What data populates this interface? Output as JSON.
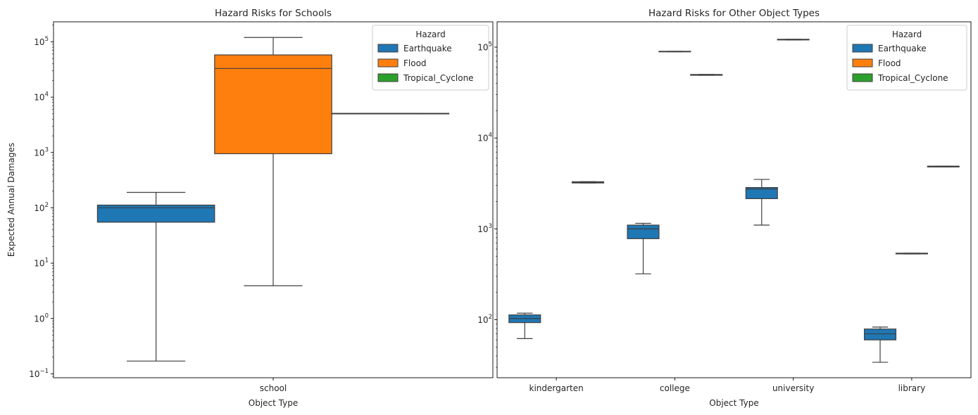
{
  "chart_data": [
    {
      "type": "box",
      "title": "Hazard Risks for Schools",
      "xlabel": "Object Type",
      "ylabel": "Expected Annual Damages",
      "yscale": "log",
      "ylim": [
        0.085,
        230000
      ],
      "yticks": [
        {
          "value": 0.1,
          "base": "10",
          "exp": "−1"
        },
        {
          "value": 1,
          "base": "10",
          "exp": "0"
        },
        {
          "value": 10,
          "base": "10",
          "exp": "1"
        },
        {
          "value": 100,
          "base": "10",
          "exp": "2"
        },
        {
          "value": 1000,
          "base": "10",
          "exp": "3"
        },
        {
          "value": 10000,
          "base": "10",
          "exp": "4"
        },
        {
          "value": 100000,
          "base": "10",
          "exp": "5"
        }
      ],
      "categories": [
        "school"
      ],
      "legend": {
        "title": "Hazard",
        "position": "top-right"
      },
      "series": [
        {
          "name": "Earthquake",
          "color": "#1f77b4",
          "boxes": [
            {
              "min": 0.17,
              "q1": 55,
              "median": 100,
              "q3": 112,
              "max": 190
            }
          ]
        },
        {
          "name": "Flood",
          "color": "#ff7f0e",
          "boxes": [
            {
              "min": 3.9,
              "q1": 950,
              "median": 33000,
              "q3": 58000,
              "max": 120000
            }
          ]
        },
        {
          "name": "Tropical_Cyclone",
          "color": "#2ca02c",
          "boxes": [
            {
              "min": 5000,
              "q1": 5000,
              "median": 5050,
              "q3": 5100,
              "max": 5100
            }
          ]
        }
      ]
    },
    {
      "type": "box",
      "title": "Hazard Risks for Other Object Types",
      "xlabel": "Object Type",
      "ylabel": "",
      "yscale": "log",
      "ylim": [
        23,
        190000
      ],
      "yticks": [
        {
          "value": 100,
          "base": "10",
          "exp": "2"
        },
        {
          "value": 1000,
          "base": "10",
          "exp": "3"
        },
        {
          "value": 10000,
          "base": "10",
          "exp": "4"
        },
        {
          "value": 100000,
          "base": "10",
          "exp": "5"
        }
      ],
      "categories": [
        "kindergarten",
        "college",
        "university",
        "library"
      ],
      "legend": {
        "title": "Hazard",
        "position": "top-right"
      },
      "series": [
        {
          "name": "Earthquake",
          "color": "#1f77b4",
          "boxes": [
            {
              "min": 62,
              "q1": 93,
              "median": 103,
              "q3": 113,
              "max": 118
            },
            {
              "min": 320,
              "q1": 780,
              "median": 1000,
              "q3": 1100,
              "max": 1150
            },
            {
              "min": 1100,
              "q1": 2150,
              "median": 2750,
              "q3": 2850,
              "max": 3500
            },
            {
              "min": 34,
              "q1": 60,
              "median": 70,
              "q3": 79,
              "max": 83
            }
          ]
        },
        {
          "name": "Flood",
          "color": "#ff7f0e",
          "boxes": [
            null,
            {
              "min": 89000,
              "q1": 89000,
              "median": 89500,
              "q3": 90000,
              "max": 90000
            },
            {
              "min": 120000,
              "q1": 120000,
              "median": 121000,
              "q3": 122000,
              "max": 122000
            },
            {
              "min": 530,
              "q1": 530,
              "median": 535,
              "q3": 540,
              "max": 540
            }
          ]
        },
        {
          "name": "Tropical_Cyclone",
          "color": "#2ca02c",
          "boxes": [
            {
              "min": 3200,
              "q1": 3200,
              "median": 3250,
              "q3": 3300,
              "max": 3300
            },
            {
              "min": 49000,
              "q1": 49000,
              "median": 49500,
              "q3": 50000,
              "max": 50000
            },
            null,
            {
              "min": 4800,
              "q1": 4800,
              "median": 4850,
              "q3": 4900,
              "max": 4900
            }
          ]
        }
      ]
    }
  ]
}
